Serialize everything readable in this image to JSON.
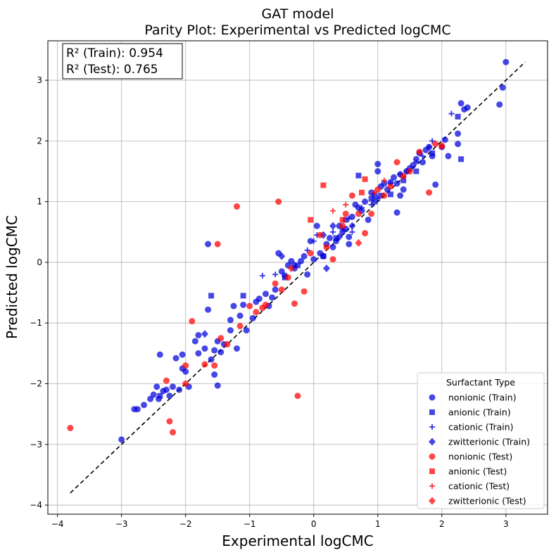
{
  "chart_data": {
    "type": "scatter",
    "title": "GAT model",
    "subtitle": "Parity Plot: Experimental vs Predicted logCMC",
    "xlabel": "Experimental logCMC",
    "ylabel": "Predicted logCMC",
    "xlim": [
      -4.15,
      3.65
    ],
    "ylim": [
      -4.15,
      3.65
    ],
    "xticks": [
      -4,
      -3,
      -2,
      -1,
      0,
      1,
      2,
      3
    ],
    "yticks": [
      -4,
      -3,
      -2,
      -1,
      0,
      1,
      2,
      3
    ],
    "grid": true,
    "annotation": [
      "R² (Train): 0.954",
      "R² (Test): 0.765"
    ],
    "parity_line": {
      "from": [
        -3.8,
        -3.8
      ],
      "to": [
        3.3,
        3.3
      ],
      "style": "dashed",
      "color": "#000000"
    },
    "legend": {
      "title": "Surfactant Type",
      "position": "lower right"
    },
    "series": [
      {
        "name": "nonionic (Train)",
        "marker": "circle",
        "color": "#0000dd",
        "points": [
          [
            -3,
            -2.92
          ],
          [
            -2.8,
            -2.42
          ],
          [
            -2.75,
            -2.42
          ],
          [
            -2.65,
            -2.35
          ],
          [
            -2.55,
            -2.25
          ],
          [
            -2.5,
            -2.18
          ],
          [
            -2.45,
            -2.05
          ],
          [
            -2.42,
            -2.25
          ],
          [
            -2.4,
            -1.52
          ],
          [
            -2.35,
            -2.12
          ],
          [
            -2.3,
            -2.1
          ],
          [
            -2.25,
            -2.2
          ],
          [
            -2.2,
            -2.05
          ],
          [
            -2.15,
            -1.58
          ],
          [
            -2.05,
            -1.52
          ],
          [
            -2.05,
            -1.75
          ],
          [
            -2.0,
            -1.8
          ],
          [
            -1.95,
            -2.05
          ],
          [
            -1.85,
            -1.3
          ],
          [
            -1.8,
            -1.2
          ],
          [
            -1.7,
            -1.42
          ],
          [
            -1.65,
            -0.78
          ],
          [
            -1.65,
            0.3
          ],
          [
            -1.6,
            -1.6
          ],
          [
            -1.55,
            -1.85
          ],
          [
            -1.5,
            -1.3
          ],
          [
            -1.5,
            -2.03
          ],
          [
            -1.45,
            -1.48
          ],
          [
            -1.4,
            -1.35
          ],
          [
            -1.3,
            -0.95
          ],
          [
            -1.3,
            -1.12
          ],
          [
            -1.25,
            -0.72
          ],
          [
            -1.2,
            -1.42
          ],
          [
            -1.15,
            -0.88
          ],
          [
            -1.1,
            -0.7
          ],
          [
            -1.05,
            -1.12
          ],
          [
            -0.95,
            -0.92
          ],
          [
            -0.9,
            -0.65
          ],
          [
            -0.85,
            -0.6
          ],
          [
            -0.75,
            -0.52
          ],
          [
            -0.7,
            -0.72
          ],
          [
            -0.65,
            -0.58
          ],
          [
            -0.6,
            -0.45
          ],
          [
            -0.55,
            0.15
          ],
          [
            -0.5,
            -0.15
          ],
          [
            -0.45,
            -0.22
          ],
          [
            -0.4,
            -0.05
          ],
          [
            -0.35,
            0.02
          ],
          [
            -0.3,
            -0.1
          ],
          [
            -0.2,
            0.02
          ],
          [
            -0.15,
            0.1
          ],
          [
            -0.1,
            -0.2
          ],
          [
            0.0,
            0.05
          ],
          [
            0.05,
            0.6
          ],
          [
            0.1,
            0.15
          ],
          [
            0.15,
            0.1
          ],
          [
            0.2,
            0.3
          ],
          [
            0.25,
            0.4
          ],
          [
            0.3,
            0.25
          ],
          [
            0.35,
            0.35
          ],
          [
            0.4,
            0.6
          ],
          [
            0.45,
            0.5
          ],
          [
            0.5,
            0.55
          ],
          [
            0.55,
            0.3
          ],
          [
            0.6,
            0.75
          ],
          [
            0.65,
            0.95
          ],
          [
            0.7,
            0.9
          ],
          [
            0.75,
            0.85
          ],
          [
            0.8,
            1.0
          ],
          [
            0.85,
            0.7
          ],
          [
            0.9,
            1.15
          ],
          [
            0.95,
            1.1
          ],
          [
            1.0,
            1.5
          ],
          [
            1.0,
            1.62
          ],
          [
            1.05,
            1.25
          ],
          [
            1.1,
            1.3
          ],
          [
            1.15,
            1.2
          ],
          [
            1.2,
            1.32
          ],
          [
            1.25,
            1.4
          ],
          [
            1.3,
            1.3
          ],
          [
            1.3,
            0.82
          ],
          [
            1.35,
            1.45
          ],
          [
            1.4,
            1.2
          ],
          [
            1.45,
            1.5
          ],
          [
            1.5,
            1.55
          ],
          [
            1.55,
            1.6
          ],
          [
            1.6,
            1.7
          ],
          [
            1.65,
            1.8
          ],
          [
            1.7,
            1.65
          ],
          [
            1.75,
            1.85
          ],
          [
            1.8,
            1.9
          ],
          [
            1.85,
            1.75
          ],
          [
            1.9,
            1.28
          ],
          [
            2.0,
            1.9
          ],
          [
            2.05,
            2.02
          ],
          [
            2.1,
            1.75
          ],
          [
            2.25,
            2.12
          ],
          [
            2.25,
            1.95
          ],
          [
            2.3,
            2.62
          ],
          [
            2.35,
            2.52
          ],
          [
            2.4,
            2.55
          ],
          [
            2.9,
            2.6
          ],
          [
            2.95,
            2.88
          ],
          [
            3.0,
            3.3
          ],
          [
            1.35,
            1.1
          ],
          [
            0.55,
            0.42
          ],
          [
            -0.05,
            0.35
          ],
          [
            -1.8,
            -1.5
          ],
          [
            -1.55,
            -1.45
          ],
          [
            -2.1,
            -2.1
          ]
        ]
      },
      {
        "name": "anionic (Train)",
        "marker": "square",
        "color": "#0000dd",
        "points": [
          [
            -2.4,
            -2.2
          ],
          [
            -1.6,
            -0.55
          ],
          [
            -1.1,
            -0.55
          ],
          [
            -0.25,
            -0.05
          ],
          [
            0.15,
            0.1
          ],
          [
            0.35,
            0.4
          ],
          [
            0.5,
            0.7
          ],
          [
            0.7,
            1.43
          ],
          [
            0.9,
            1.05
          ],
          [
            1.05,
            1.1
          ],
          [
            1.2,
            1.12
          ],
          [
            1.4,
            1.35
          ],
          [
            1.6,
            1.5
          ],
          [
            1.85,
            1.8
          ],
          [
            2.25,
            2.4
          ],
          [
            2.3,
            1.7
          ],
          [
            0.95,
            1.0
          ],
          [
            -0.45,
            -0.25
          ]
        ]
      },
      {
        "name": "cationic (Train)",
        "marker": "plus",
        "color": "#0000dd",
        "points": [
          [
            -0.8,
            -0.22
          ],
          [
            -0.6,
            -0.2
          ],
          [
            -0.1,
            0.2
          ],
          [
            0.0,
            0.35
          ],
          [
            0.05,
            0.45
          ],
          [
            0.3,
            0.5
          ],
          [
            0.45,
            0.55
          ],
          [
            0.55,
            0.72
          ],
          [
            0.75,
            0.9
          ],
          [
            0.9,
            0.95
          ],
          [
            1.0,
            1.05
          ],
          [
            1.2,
            1.3
          ],
          [
            1.35,
            1.45
          ],
          [
            1.45,
            1.5
          ],
          [
            1.6,
            1.65
          ],
          [
            1.7,
            1.75
          ],
          [
            1.8,
            1.9
          ],
          [
            1.85,
            2.0
          ],
          [
            2.15,
            2.45
          ],
          [
            0.6,
            0.5
          ]
        ]
      },
      {
        "name": "zwitterionic (Train)",
        "marker": "diamond",
        "color": "#0000dd",
        "points": [
          [
            -1.7,
            -1.18
          ],
          [
            -0.5,
            0.1
          ],
          [
            -0.3,
            -0.05
          ],
          [
            0.15,
            0.45
          ],
          [
            0.2,
            -0.1
          ],
          [
            0.3,
            0.6
          ],
          [
            0.4,
            0.42
          ],
          [
            0.6,
            0.6
          ]
        ]
      },
      {
        "name": "nonionic (Test)",
        "marker": "circle",
        "color": "#ff0000",
        "points": [
          [
            -3.8,
            -2.73
          ],
          [
            -2.25,
            -2.62
          ],
          [
            -2.2,
            -2.8
          ],
          [
            -2.3,
            -1.95
          ],
          [
            -2.0,
            -2.0
          ],
          [
            -2.0,
            -1.7
          ],
          [
            -1.9,
            -0.97
          ],
          [
            -1.7,
            -1.68
          ],
          [
            -1.55,
            -1.7
          ],
          [
            -1.5,
            0.3
          ],
          [
            -1.45,
            -1.25
          ],
          [
            -1.35,
            -1.35
          ],
          [
            -1.2,
            0.92
          ],
          [
            -1.15,
            -1.05
          ],
          [
            -1.0,
            -0.72
          ],
          [
            -0.9,
            -0.82
          ],
          [
            -0.8,
            -0.75
          ],
          [
            -0.75,
            -0.7
          ],
          [
            -0.6,
            -0.35
          ],
          [
            -0.55,
            1.0
          ],
          [
            -0.5,
            -0.45
          ],
          [
            -0.4,
            -0.25
          ],
          [
            -0.3,
            -0.68
          ],
          [
            -0.25,
            -2.2
          ],
          [
            -0.15,
            -0.48
          ],
          [
            -0.05,
            0.15
          ],
          [
            0.1,
            0.45
          ],
          [
            0.2,
            0.25
          ],
          [
            0.3,
            0.05
          ],
          [
            0.45,
            0.6
          ],
          [
            0.5,
            0.8
          ],
          [
            0.6,
            1.1
          ],
          [
            0.7,
            0.8
          ],
          [
            0.8,
            0.48
          ],
          [
            0.9,
            0.8
          ],
          [
            1.0,
            1.2
          ],
          [
            1.1,
            1.1
          ],
          [
            1.2,
            1.25
          ],
          [
            1.3,
            1.65
          ],
          [
            1.4,
            1.42
          ],
          [
            1.5,
            1.5
          ],
          [
            1.65,
            1.82
          ],
          [
            1.8,
            1.15
          ],
          [
            1.9,
            1.95
          ],
          [
            2.0,
            1.92
          ]
        ]
      },
      {
        "name": "anionic (Test)",
        "marker": "square",
        "color": "#ff0000",
        "points": [
          [
            -0.05,
            0.7
          ],
          [
            0.15,
            1.27
          ],
          [
            0.45,
            0.7
          ],
          [
            0.75,
            1.15
          ],
          [
            0.8,
            1.37
          ]
        ]
      },
      {
        "name": "cationic (Test)",
        "marker": "plus",
        "color": "#ff0000",
        "points": [
          [
            0.3,
            0.85
          ],
          [
            0.5,
            0.95
          ],
          [
            0.95,
            1.15
          ],
          [
            1.1,
            1.35
          ],
          [
            2.0,
            1.9
          ]
        ]
      },
      {
        "name": "zwitterionic (Test)",
        "marker": "diamond",
        "color": "#ff0000",
        "points": [
          [
            -0.35,
            -0.1
          ],
          [
            0.7,
            0.32
          ]
        ]
      }
    ]
  }
}
